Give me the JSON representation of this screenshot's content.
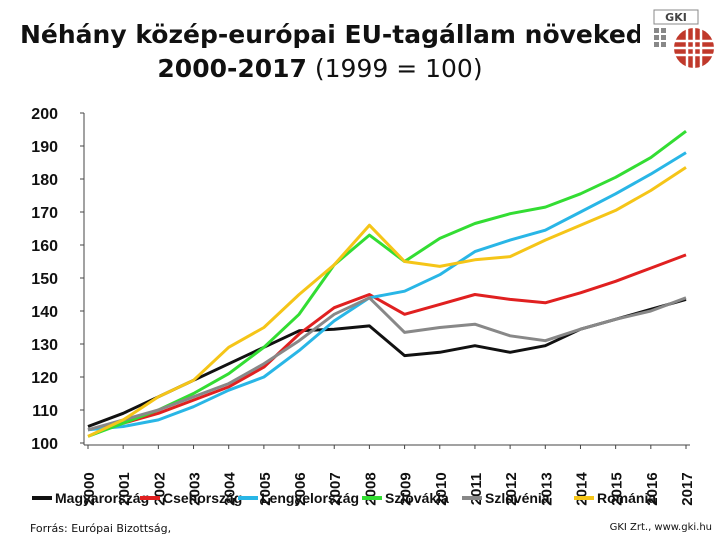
{
  "title_line1": "Néhány közép-európai EU-tagállam növeked",
  "title_line2_bold": "2000-2017",
  "title_line2_rest": " (1999 = 100)",
  "logo_text": "GKI",
  "source": "Forrás: Európai Bizottság,",
  "credit": "GKI Zrt., www.gki.hu",
  "chart_data": {
    "type": "line",
    "x": [
      "2000",
      "2001",
      "2002",
      "2003",
      "2004",
      "2005",
      "2006",
      "2007",
      "2008",
      "2009",
      "2010",
      "2011",
      "2012",
      "2013",
      "2014",
      "2015",
      "2016",
      "2017"
    ],
    "ylim": [
      100,
      200
    ],
    "yticks": [
      100,
      110,
      120,
      130,
      140,
      150,
      160,
      170,
      180,
      190,
      200
    ],
    "grid": false,
    "legend_position": "bottom",
    "series": [
      {
        "name": "Magyarország",
        "color": "#111111",
        "values": [
          105,
          109,
          114,
          119,
          124,
          129,
          134,
          134.5,
          135.5,
          126.5,
          127.5,
          129.5,
          127.5,
          129.5,
          134.5,
          137.5,
          140.5,
          143.5
        ]
      },
      {
        "name": "Csehország",
        "color": "#e02020",
        "values": [
          104,
          106,
          109,
          113,
          117,
          123,
          133,
          141,
          145,
          139,
          142,
          145,
          143.5,
          142.5,
          145.5,
          149,
          153,
          157
        ]
      },
      {
        "name": "Lengyelország",
        "color": "#29b6e6",
        "values": [
          104,
          105,
          107,
          111,
          116,
          120,
          128,
          137,
          144,
          146,
          151,
          158,
          161.5,
          164.5,
          170,
          175.5,
          181.5,
          188
        ]
      },
      {
        "name": "Szlovákia",
        "color": "#33dd33",
        "values": [
          102,
          106,
          110,
          115,
          121,
          129,
          139,
          154,
          163,
          155,
          162,
          166.5,
          169.5,
          171.5,
          175.5,
          180.5,
          186.5,
          194.5
        ]
      },
      {
        "name": "Szlovénia",
        "color": "#888888",
        "values": [
          104,
          107,
          110,
          114,
          118,
          124,
          131,
          139,
          144,
          133.5,
          135,
          136,
          132.5,
          131,
          134.5,
          137.5,
          140,
          144
        ]
      },
      {
        "name": "Románia",
        "color": "#f5c518",
        "values": [
          102,
          107,
          114,
          119,
          129,
          135,
          145,
          154,
          166,
          155,
          153.5,
          155.5,
          156.5,
          161.5,
          166,
          170.5,
          176.5,
          183.5
        ]
      }
    ]
  }
}
